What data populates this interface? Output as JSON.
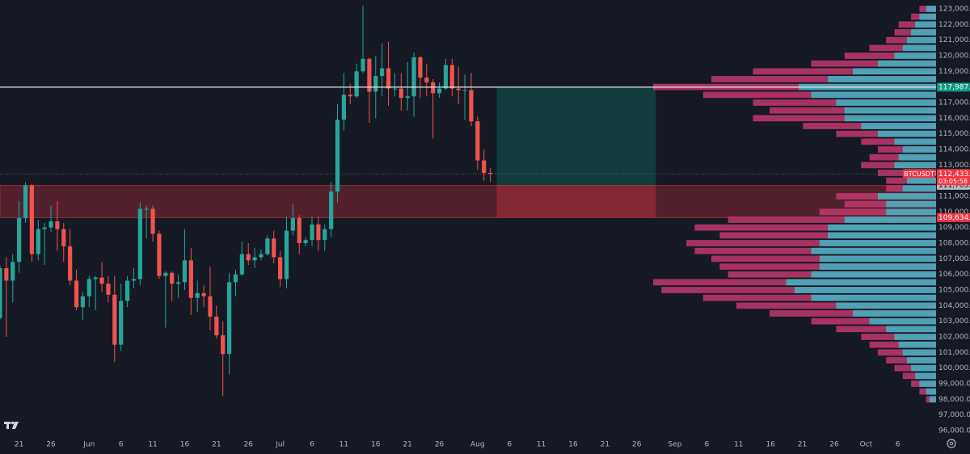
{
  "chart_data": {
    "type": "candlestick",
    "x": [
      "May 18",
      "May 19",
      "May 20",
      "May 21",
      "May 22",
      "May 23",
      "May 24",
      "May 25",
      "May 26",
      "May 27",
      "May 28",
      "May 29",
      "May 30",
      "May 31",
      "Jun 1",
      "Jun 2",
      "Jun 3",
      "Jun 4",
      "Jun 5",
      "Jun 6",
      "Jun 7",
      "Jun 8",
      "Jun 9",
      "Jun 10",
      "Jun 11",
      "Jun 12",
      "Jun 13",
      "Jun 14",
      "Jun 15",
      "Jun 16",
      "Jun 17",
      "Jun 18",
      "Jun 19",
      "Jun 20",
      "Jun 21",
      "Jun 22",
      "Jun 23",
      "Jun 24",
      "Jun 25",
      "Jun 26",
      "Jun 27",
      "Jun 28",
      "Jun 29",
      "Jun 30",
      "Jul 1",
      "Jul 2",
      "Jul 3",
      "Jul 4",
      "Jul 5",
      "Jul 6",
      "Jul 7",
      "Jul 8",
      "Jul 9",
      "Jul 10",
      "Jul 11",
      "Jul 12",
      "Jul 13",
      "Jul 14",
      "Jul 15",
      "Jul 16",
      "Jul 17",
      "Jul 18",
      "Jul 19",
      "Jul 20",
      "Jul 21",
      "Jul 22",
      "Jul 23",
      "Jul 24",
      "Jul 25",
      "Jul 26",
      "Jul 27",
      "Jul 28",
      "Jul 29",
      "Jul 30",
      "Jul 31",
      "Aug 1",
      "Aug 2",
      "Aug 3"
    ],
    "open": [
      103200,
      106400,
      105600,
      106800,
      109600,
      111700,
      107300,
      108900,
      109000,
      109400,
      108900,
      107800,
      105600,
      103900,
      104600,
      105700,
      105800,
      105400,
      104700,
      101500,
      104300,
      105600,
      105700,
      110200,
      110200,
      108600,
      105900,
      106100,
      105400,
      105500,
      106900,
      104500,
      104800,
      104600,
      103300,
      102100,
      100900,
      105500,
      106000,
      107300,
      106900,
      107100,
      107300,
      108300,
      107100,
      105700,
      108800,
      109600,
      108000,
      108200,
      109200,
      108200,
      108900,
      111300,
      115900,
      117500,
      117400,
      119000,
      119800,
      117700,
      118700,
      119200,
      117900,
      117900,
      117300,
      117400,
      119900,
      118600,
      118300,
      117600,
      117900,
      119400,
      117900,
      117800,
      117800,
      115800,
      113300,
      112500
    ],
    "high": [
      106600,
      107100,
      107300,
      110700,
      111900,
      111800,
      109500,
      109300,
      110400,
      110700,
      109300,
      108900,
      106300,
      104900,
      105900,
      105900,
      106800,
      105900,
      105900,
      105400,
      105900,
      106400,
      110600,
      110400,
      110400,
      108800,
      106200,
      106200,
      106000,
      108900,
      107700,
      105600,
      105300,
      106500,
      104000,
      103000,
      106100,
      106300,
      108100,
      108000,
      107700,
      107600,
      108500,
      108800,
      107500,
      109700,
      110500,
      109800,
      108400,
      109700,
      109700,
      109200,
      111900,
      116900,
      118900,
      118200,
      119500,
      123200,
      119900,
      120000,
      120800,
      120900,
      118900,
      118900,
      119600,
      120200,
      120000,
      119500,
      118500,
      118300,
      119800,
      119800,
      119300,
      118800,
      118900,
      116100,
      114000,
      112800
    ],
    "low": [
      103100,
      102000,
      104200,
      106100,
      109300,
      106800,
      106900,
      106600,
      108700,
      107500,
      106800,
      105300,
      103700,
      103100,
      103900,
      103700,
      104900,
      104200,
      100400,
      101100,
      103900,
      105100,
      105300,
      108300,
      108100,
      105700,
      102600,
      104300,
      104500,
      105000,
      103400,
      103600,
      103900,
      102400,
      101900,
      98200,
      99600,
      104600,
      105900,
      106600,
      106400,
      106900,
      107200,
      106700,
      105200,
      105100,
      108500,
      107300,
      107800,
      107800,
      107500,
      107500,
      108400,
      110600,
      115200,
      116900,
      117300,
      118900,
      115700,
      116000,
      117400,
      116800,
      117400,
      116500,
      116500,
      116100,
      117300,
      117400,
      114700,
      117300,
      117800,
      117400,
      116900,
      115900,
      115500,
      112700,
      112000,
      111900
    ],
    "close": [
      106400,
      105600,
      106800,
      109600,
      111700,
      107300,
      108900,
      109000,
      109400,
      108900,
      107800,
      105600,
      103900,
      104600,
      105700,
      105800,
      105400,
      104700,
      101500,
      104300,
      105600,
      105700,
      110200,
      110200,
      108600,
      105900,
      106100,
      105400,
      105500,
      106900,
      104500,
      104800,
      104600,
      103300,
      102100,
      100900,
      105500,
      106000,
      107300,
      106900,
      107100,
      107300,
      108300,
      107100,
      105700,
      108800,
      109600,
      108000,
      108200,
      109200,
      108200,
      108900,
      111300,
      115900,
      117500,
      117400,
      119000,
      119800,
      117700,
      118700,
      119200,
      117900,
      117900,
      117300,
      117400,
      119900,
      118600,
      118300,
      117600,
      117900,
      119400,
      117900,
      117800,
      117800,
      115800,
      113300,
      112500,
      112433.11
    ],
    "up_color": "#26a69a",
    "down_color": "#ef5350",
    "xlim": [
      "May 18",
      "Oct 12"
    ],
    "xticks": [
      {
        "value": "May 21",
        "label": "21"
      },
      {
        "value": "May 26",
        "label": "26"
      },
      {
        "value": "Jun 1",
        "label": "Jun"
      },
      {
        "value": "Jun 6",
        "label": "6"
      },
      {
        "value": "Jun 11",
        "label": "11"
      },
      {
        "value": "Jun 16",
        "label": "16"
      },
      {
        "value": "Jun 21",
        "label": "21"
      },
      {
        "value": "Jun 26",
        "label": "26"
      },
      {
        "value": "Jul 1",
        "label": "Jul"
      },
      {
        "value": "Jul 6",
        "label": "6"
      },
      {
        "value": "Jul 11",
        "label": "11"
      },
      {
        "value": "Jul 16",
        "label": "16"
      },
      {
        "value": "Jul 21",
        "label": "21"
      },
      {
        "value": "Jul 26",
        "label": "26"
      },
      {
        "value": "Aug 1",
        "label": "Aug"
      },
      {
        "value": "Aug 6",
        "label": "6"
      },
      {
        "value": "Aug 11",
        "label": "11"
      },
      {
        "value": "Aug 16",
        "label": "16"
      },
      {
        "value": "Aug 21",
        "label": "21"
      },
      {
        "value": "Aug 26",
        "label": "26"
      },
      {
        "value": "Sep 1",
        "label": "Sep"
      },
      {
        "value": "Sep 6",
        "label": "6"
      },
      {
        "value": "Sep 11",
        "label": "11"
      },
      {
        "value": "Sep 16",
        "label": "16"
      },
      {
        "value": "Sep 21",
        "label": "21"
      },
      {
        "value": "Sep 26",
        "label": "26"
      },
      {
        "value": "Oct 1",
        "label": "Oct"
      },
      {
        "value": "Oct 6",
        "label": "6"
      }
    ],
    "ylim": [
      95638,
      123569
    ],
    "yticks": [
      {
        "value": 96000,
        "label": "96,000.00"
      },
      {
        "value": 97000,
        "label": "97,000.00"
      },
      {
        "value": 98000,
        "label": "98,000.00"
      },
      {
        "value": 99000,
        "label": "99,000.00"
      },
      {
        "value": 100000,
        "label": "100,000.00"
      },
      {
        "value": 101000,
        "label": "101,000.00"
      },
      {
        "value": 102000,
        "label": "102,000.00"
      },
      {
        "value": 103000,
        "label": "103,000.00"
      },
      {
        "value": 104000,
        "label": "104,000.00"
      },
      {
        "value": 105000,
        "label": "105,000.00"
      },
      {
        "value": 106000,
        "label": "106,000.00"
      },
      {
        "value": 107000,
        "label": "107,000.00"
      },
      {
        "value": 108000,
        "label": "108,000.00"
      },
      {
        "value": 109000,
        "label": "109,000.00"
      },
      {
        "value": 110000,
        "label": "110,000.00"
      },
      {
        "value": 111000,
        "label": "111,000.00"
      },
      {
        "value": 112000,
        "label": "112,000.00"
      },
      {
        "value": 113000,
        "label": "113,000.00"
      },
      {
        "value": 114000,
        "label": "114,000.00"
      },
      {
        "value": 115000,
        "label": "115,000.00"
      },
      {
        "value": 116000,
        "label": "116,000.00"
      },
      {
        "value": 117000,
        "label": "117,000.00"
      },
      {
        "value": 118000,
        "label": "118,000.00"
      },
      {
        "value": 119000,
        "label": "119,000.00"
      },
      {
        "value": 120000,
        "label": "120,000.00"
      },
      {
        "value": 121000,
        "label": "121,000.00"
      },
      {
        "value": 122000,
        "label": "122,000.00"
      },
      {
        "value": 123000,
        "label": "123,000.00"
      }
    ],
    "grid": false,
    "current": {
      "symbol": "BTCUSDT",
      "price": {
        "value": 112433.11,
        "label": "112,433.11"
      },
      "countdown": "03:05:58",
      "color": "#f23645"
    },
    "position": {
      "x": [
        "Aug 4",
        "Aug 29"
      ],
      "target": {
        "value": 117987.78,
        "label": "117,987.78"
      },
      "entry": {
        "value": 111705.79,
        "label": "111,705.79"
      },
      "stop": {
        "value": 109634.86,
        "label": "109,634.86"
      },
      "target_color": "#089981",
      "stop_color": "#f23645"
    },
    "profile": {
      "prices": [
        123000,
        122500,
        122000,
        121500,
        121000,
        120500,
        120000,
        119500,
        119000,
        118500,
        118000,
        117500,
        117000,
        116500,
        116000,
        115500,
        115000,
        114500,
        114000,
        113500,
        113000,
        112500,
        112000,
        111500,
        111000,
        110500,
        110000,
        109500,
        109000,
        108500,
        108000,
        107500,
        107000,
        106500,
        106000,
        105500,
        105000,
        104500,
        104000,
        103500,
        103000,
        102500,
        102000,
        101500,
        101000,
        100500,
        100000,
        99500,
        99000,
        98500,
        98000
      ],
      "total": [
        20,
        30,
        45,
        50,
        60,
        80,
        110,
        150,
        220,
        270,
        340,
        280,
        220,
        200,
        220,
        160,
        120,
        90,
        70,
        80,
        90,
        70,
        60,
        60,
        120,
        110,
        140,
        250,
        290,
        260,
        300,
        290,
        270,
        260,
        250,
        340,
        330,
        280,
        240,
        200,
        150,
        120,
        90,
        80,
        70,
        60,
        50,
        40,
        30,
        20,
        12
      ],
      "up": [
        12,
        20,
        25,
        30,
        35,
        40,
        50,
        70,
        100,
        130,
        165,
        150,
        120,
        110,
        110,
        90,
        70,
        50,
        40,
        45,
        50,
        40,
        35,
        40,
        70,
        60,
        60,
        110,
        130,
        130,
        140,
        150,
        140,
        140,
        150,
        180,
        170,
        150,
        120,
        100,
        80,
        60,
        50,
        45,
        40,
        35,
        30,
        25,
        20,
        12,
        8
      ],
      "up_color": "#3fb6c3",
      "down_color": "#c2386f"
    }
  }
}
